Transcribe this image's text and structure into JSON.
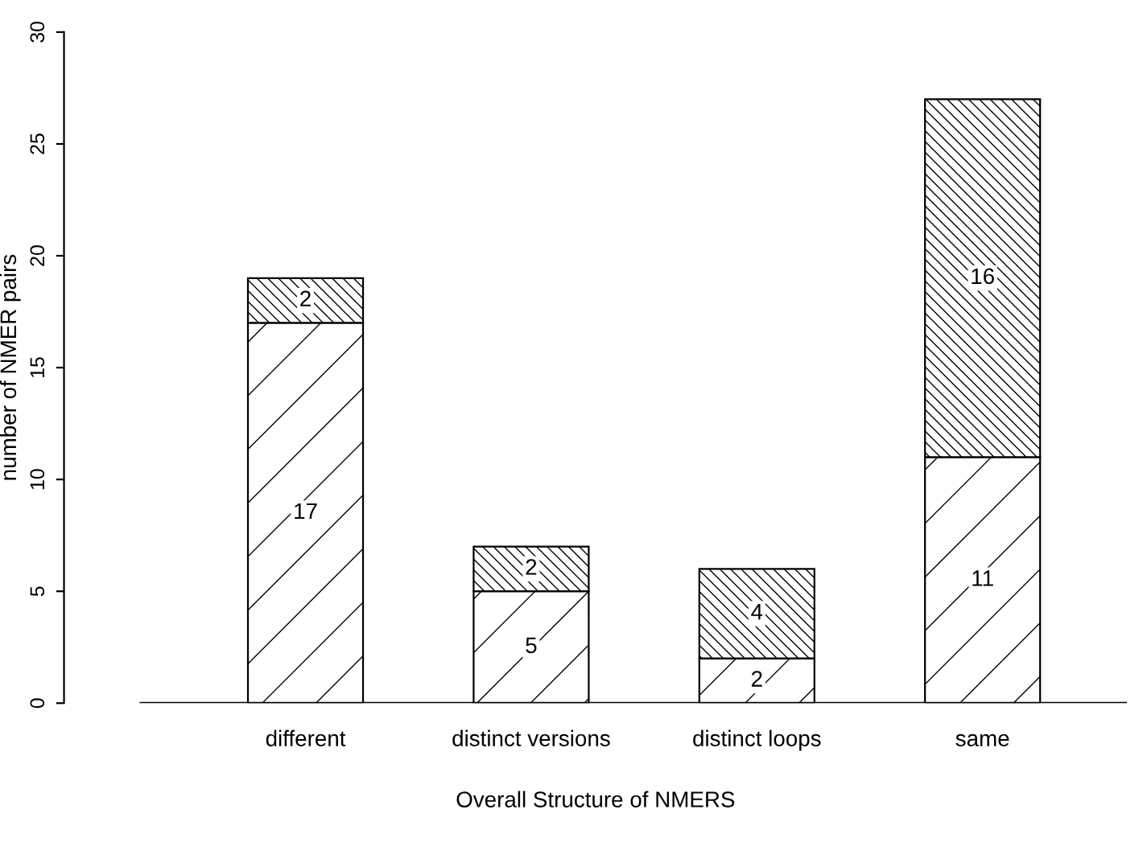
{
  "chart_data": {
    "type": "bar",
    "xlabel": "Overall Structure of NMERS",
    "ylabel": "number of NMER pairs",
    "categories": [
      "different",
      "distinct versions",
      "distinct loops",
      "same"
    ],
    "stacked": true,
    "data_labels": true,
    "grid": false,
    "legend": false,
    "series": [
      {
        "color": "#000000",
        "values": [
          17,
          5,
          2,
          11
        ]
      },
      {
        "color": "#000000",
        "values": [
          2,
          2,
          4,
          16
        ]
      }
    ],
    "ylim": [
      0,
      30
    ],
    "yticks": [
      0,
      5,
      10,
      15,
      20,
      25,
      30
    ]
  }
}
